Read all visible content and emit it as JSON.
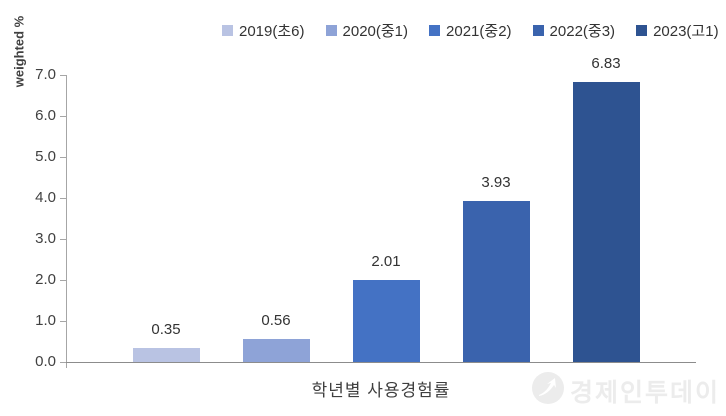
{
  "chart_data": {
    "type": "bar",
    "title": "",
    "xlabel": "학년별 사용경험률",
    "ylabel": "weighted %",
    "ylim": [
      0,
      7
    ],
    "ytick_step": 1.0,
    "ytick_labels": [
      "0.0",
      "1.0",
      "2.0",
      "3.0",
      "4.0",
      "5.0",
      "6.0",
      "7.0"
    ],
    "categories": [
      "2019(초6)",
      "2020(중1)",
      "2021(중2)",
      "2022(중3)",
      "2023(고1)"
    ],
    "values": [
      0.35,
      0.56,
      2.01,
      3.93,
      6.83
    ],
    "value_labels": [
      "0.35",
      "0.56",
      "2.01",
      "3.93",
      "6.83"
    ],
    "bar_colors": [
      "#b9c3e3",
      "#8ea3d7",
      "#4472c4",
      "#3a63ad",
      "#2e5391"
    ],
    "legend_position": "top",
    "grid": false
  },
  "watermark": {
    "text": "경제인투데이",
    "logo": "arrow-up-circle-icon",
    "color": "#ececec"
  }
}
